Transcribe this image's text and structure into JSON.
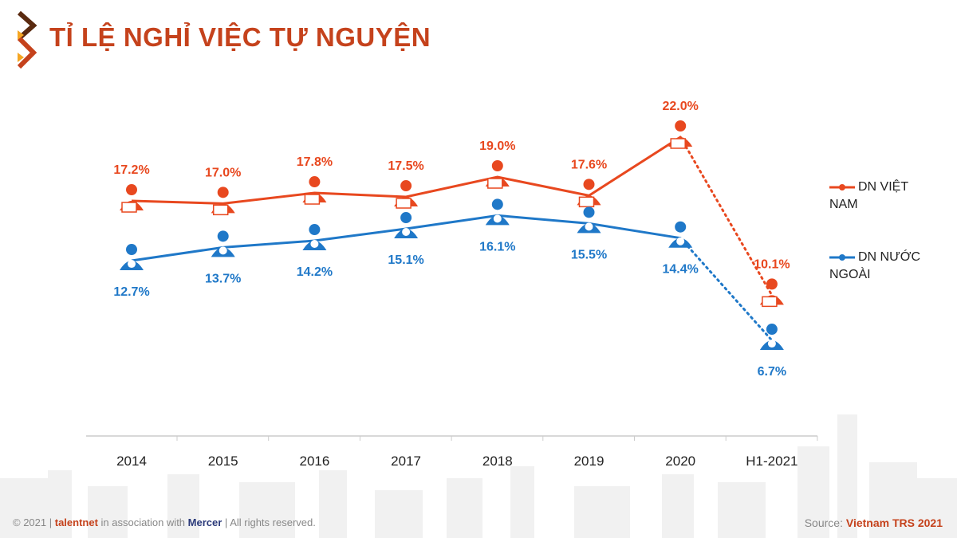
{
  "title": "TỈ LỆ NGHỈ VIỆC TỰ NGUYỆN",
  "colors": {
    "viet": "#e8481f",
    "foreign": "#1f78c8",
    "title": "#c5421c"
  },
  "chart_data": {
    "type": "line",
    "title": "TỈ LỆ NGHỈ VIỆC TỰ NGUYỆN",
    "categories": [
      "2014",
      "2015",
      "2016",
      "2017",
      "2018",
      "2019",
      "2020",
      "H1-2021"
    ],
    "series": [
      {
        "name": "DN VIỆT NAM",
        "values": [
          17.2,
          17.0,
          17.8,
          17.5,
          19.0,
          17.6,
          22.0,
          10.1
        ],
        "labels": [
          "17.2%",
          "17.0%",
          "17.8%",
          "17.5%",
          "19.0%",
          "17.6%",
          "22.0%",
          "10.1%"
        ]
      },
      {
        "name": "DN NƯỚC NGOÀI",
        "values": [
          12.7,
          13.7,
          14.2,
          15.1,
          16.1,
          15.5,
          14.4,
          6.7
        ],
        "labels": [
          "12.7%",
          "13.7%",
          "14.2%",
          "15.1%",
          "16.1%",
          "15.5%",
          "14.4%",
          "6.7%"
        ]
      }
    ],
    "last_segment_style": "dotted",
    "legend_position": "right",
    "grid": false
  },
  "legend": {
    "viet_line1": "DN VIỆT",
    "viet_line2": "NAM",
    "foreign_line1": "DN NƯỚC",
    "foreign_line2": "NGOÀI"
  },
  "footer": {
    "copyright": "© 2021 |",
    "brand": "talentnet",
    "assoc": "in association with",
    "partner": "Mercer",
    "rights": "| All rights reserved.",
    "source_label": "Source:",
    "source": "Vietnam TRS 2021"
  }
}
